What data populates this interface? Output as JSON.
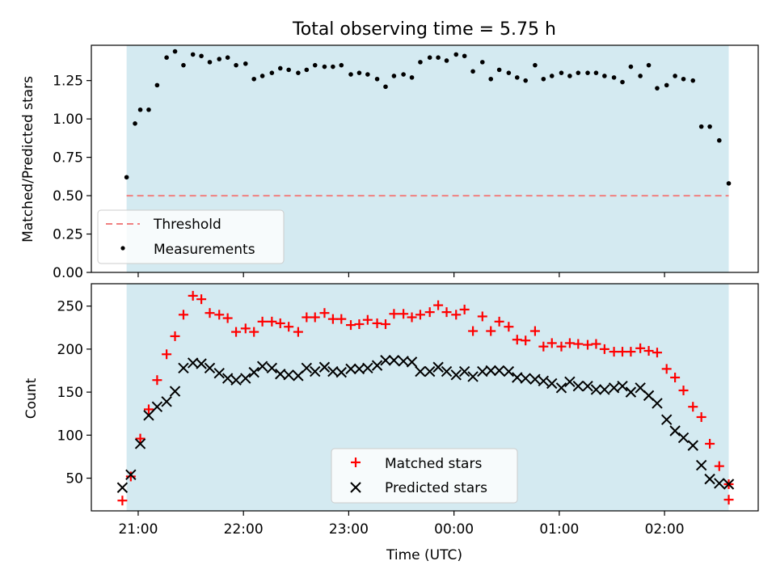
{
  "figure": {
    "title": "Total observing time = 5.75 h"
  },
  "chart_data": [
    {
      "type": "scatter",
      "title": "Total observing time = 5.75 h",
      "ylabel": "Matched/Predicted stars",
      "xlabel": "",
      "x_tick_labels": [
        "21:00",
        "22:00",
        "23:00",
        "00:00",
        "01:00",
        "02:00"
      ],
      "y_ticks": [
        0.0,
        0.25,
        0.5,
        0.75,
        1.0,
        1.25
      ],
      "y_tick_labels": [
        "0.00",
        "0.25",
        "0.50",
        "0.75",
        "1.00",
        "1.25"
      ],
      "ylim": [
        0.0,
        1.48
      ],
      "xlim_hours": [
        20.555,
        26.89
      ],
      "observing_span_hours": [
        20.89,
        26.61
      ],
      "shade_color": "#d4eaf1",
      "threshold": {
        "name": "Threshold",
        "value": 0.5,
        "color": "#f08080",
        "style": "dashed"
      },
      "legend_position": "lower-left",
      "series": [
        {
          "name": "Measurements",
          "color": "#000000",
          "marker": "dot",
          "x": [
            20.89,
            20.97,
            21.02,
            21.1,
            21.18,
            21.27,
            21.35,
            21.43,
            21.52,
            21.6,
            21.68,
            21.77,
            21.85,
            21.93,
            22.02,
            22.1,
            22.18,
            22.27,
            22.35,
            22.43,
            22.52,
            22.6,
            22.68,
            22.77,
            22.85,
            22.93,
            23.02,
            23.1,
            23.18,
            23.27,
            23.35,
            23.43,
            23.52,
            23.6,
            23.68,
            23.77,
            23.85,
            23.93,
            24.02,
            24.1,
            24.18,
            24.27,
            24.35,
            24.43,
            24.52,
            24.6,
            24.68,
            24.77,
            24.85,
            24.93,
            25.02,
            25.1,
            25.18,
            25.27,
            25.35,
            25.43,
            25.52,
            25.6,
            25.68,
            25.77,
            25.85,
            25.93,
            26.02,
            26.1,
            26.18,
            26.27,
            26.35,
            26.43,
            26.52,
            26.61
          ],
          "y": [
            0.62,
            0.97,
            1.06,
            1.06,
            1.22,
            1.4,
            1.44,
            1.35,
            1.42,
            1.41,
            1.37,
            1.39,
            1.4,
            1.35,
            1.36,
            1.26,
            1.28,
            1.3,
            1.33,
            1.32,
            1.3,
            1.32,
            1.35,
            1.34,
            1.34,
            1.35,
            1.29,
            1.3,
            1.29,
            1.26,
            1.21,
            1.28,
            1.29,
            1.27,
            1.37,
            1.4,
            1.4,
            1.38,
            1.42,
            1.41,
            1.31,
            1.37,
            1.26,
            1.32,
            1.3,
            1.27,
            1.25,
            1.35,
            1.26,
            1.28,
            1.3,
            1.28,
            1.3,
            1.3,
            1.3,
            1.28,
            1.27,
            1.24,
            1.34,
            1.28,
            1.35,
            1.2,
            1.22,
            1.28,
            1.26,
            1.25,
            0.95,
            0.95,
            0.86,
            0.58
          ]
        }
      ]
    },
    {
      "type": "scatter",
      "title": "",
      "ylabel": "Count",
      "xlabel": "Time (UTC)",
      "x_tick_labels": [
        "21:00",
        "22:00",
        "23:00",
        "00:00",
        "01:00",
        "02:00"
      ],
      "y_ticks": [
        50,
        100,
        150,
        200,
        250
      ],
      "y_tick_labels": [
        "50",
        "100",
        "150",
        "200",
        "250"
      ],
      "ylim": [
        12,
        276
      ],
      "xlim_hours": [
        20.555,
        26.89
      ],
      "observing_span_hours": [
        20.89,
        26.61
      ],
      "shade_color": "#d4eaf1",
      "legend_position": "lower-center",
      "series": [
        {
          "name": "Matched stars",
          "color": "#ff0000",
          "marker": "plus",
          "x": [
            20.85,
            20.93,
            21.02,
            21.1,
            21.18,
            21.27,
            21.35,
            21.43,
            21.52,
            21.6,
            21.68,
            21.77,
            21.85,
            21.93,
            22.02,
            22.1,
            22.18,
            22.27,
            22.35,
            22.43,
            22.52,
            22.6,
            22.68,
            22.77,
            22.85,
            22.93,
            23.02,
            23.1,
            23.18,
            23.27,
            23.35,
            23.43,
            23.52,
            23.6,
            23.68,
            23.77,
            23.85,
            23.93,
            24.02,
            24.1,
            24.18,
            24.27,
            24.35,
            24.43,
            24.52,
            24.6,
            24.68,
            24.77,
            24.85,
            24.93,
            25.02,
            25.1,
            25.18,
            25.27,
            25.35,
            25.43,
            25.52,
            25.6,
            25.68,
            25.77,
            25.85,
            25.93,
            26.02,
            26.1,
            26.18,
            26.27,
            26.35,
            26.43,
            26.52,
            26.61
          ],
          "y": [
            24,
            52,
            96,
            130,
            164,
            194,
            215,
            240,
            262,
            258,
            242,
            240,
            236,
            220,
            224,
            220,
            232,
            232,
            230,
            226,
            220,
            237,
            237,
            242,
            235,
            235,
            228,
            229,
            234,
            230,
            229,
            241,
            241,
            237,
            240,
            243,
            251,
            243,
            240,
            246,
            221,
            238,
            221,
            232,
            226,
            211,
            210,
            221,
            203,
            207,
            203,
            207,
            206,
            205,
            206,
            200,
            197,
            197,
            197,
            201,
            198,
            196,
            177,
            167,
            152,
            133,
            121,
            90,
            64,
            43
          ],
          "extra_point": {
            "x": 26.61,
            "y": 25
          }
        },
        {
          "name": "Predicted stars",
          "color": "#000000",
          "marker": "x",
          "x": [
            20.85,
            20.93,
            21.02,
            21.1,
            21.18,
            21.27,
            21.35,
            21.43,
            21.52,
            21.6,
            21.68,
            21.77,
            21.85,
            21.93,
            22.02,
            22.1,
            22.18,
            22.27,
            22.35,
            22.43,
            22.52,
            22.6,
            22.68,
            22.77,
            22.85,
            22.93,
            23.02,
            23.1,
            23.18,
            23.27,
            23.35,
            23.43,
            23.52,
            23.6,
            23.68,
            23.77,
            23.85,
            23.93,
            24.02,
            24.1,
            24.18,
            24.27,
            24.35,
            24.43,
            24.52,
            24.6,
            24.68,
            24.77,
            24.85,
            24.93,
            25.02,
            25.1,
            25.18,
            25.27,
            25.35,
            25.43,
            25.52,
            25.6,
            25.68,
            25.77,
            25.85,
            25.93,
            26.02,
            26.1,
            26.18,
            26.27,
            26.35,
            26.43,
            26.52,
            26.61
          ],
          "y": [
            39,
            54,
            90,
            123,
            133,
            139,
            151,
            178,
            184,
            183,
            178,
            172,
            166,
            164,
            166,
            173,
            180,
            178,
            171,
            170,
            169,
            178,
            174,
            179,
            174,
            173,
            177,
            177,
            178,
            181,
            187,
            187,
            186,
            185,
            174,
            174,
            179,
            174,
            170,
            174,
            168,
            174,
            175,
            175,
            174,
            167,
            166,
            165,
            163,
            160,
            155,
            162,
            157,
            157,
            153,
            153,
            155,
            157,
            150,
            155,
            146,
            137,
            118,
            105,
            97,
            88,
            65,
            49,
            44,
            43
          ]
        }
      ]
    }
  ]
}
